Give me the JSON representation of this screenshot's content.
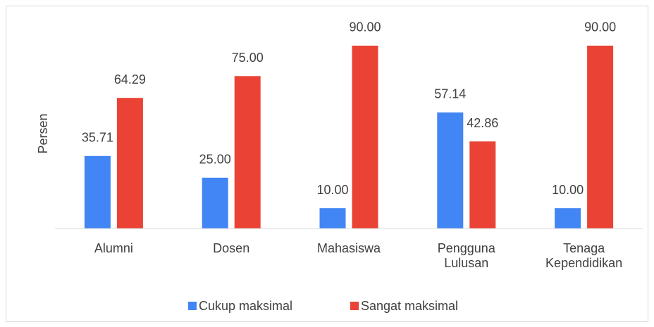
{
  "chart_data": {
    "type": "bar",
    "y_label": "Persen",
    "categories": [
      "Alumni",
      "Dosen",
      "Mahasiswa",
      "Pengguna Lulusan",
      "Tenaga Kependidikan"
    ],
    "series": [
      {
        "name": "Cukup maksimal",
        "color": "#4285f4",
        "values": [
          35.71,
          25,
          10,
          57.14,
          10
        ],
        "value_labels": [
          "35.71",
          "25.00",
          "10.00",
          "57.14",
          "10.00"
        ]
      },
      {
        "name": "Sangat maksimal",
        "color": "#ea4335",
        "values": [
          64.29,
          75,
          90,
          42.86,
          90
        ],
        "value_labels": [
          "64.29",
          "75.00",
          "90.00",
          "42.86",
          "90.00"
        ]
      }
    ],
    "ylim": [
      0,
      100
    ],
    "legend": "bottom"
  }
}
